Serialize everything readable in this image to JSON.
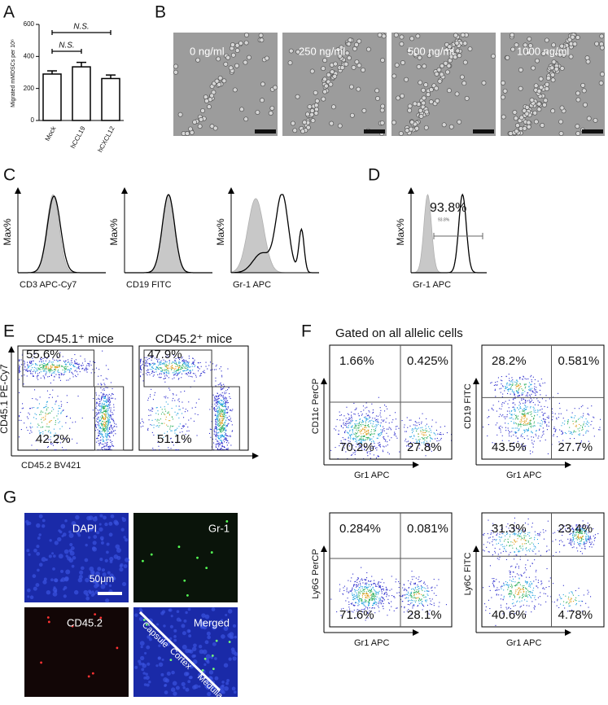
{
  "chart_data": {
    "type": "bar",
    "panel_label": "A",
    "ylabel": "Migrated mMDSCs per 10⁶",
    "categories": [
      "Mock",
      "hCCL19",
      "hCXCL12"
    ],
    "values": [
      290,
      335,
      262
    ],
    "errors": [
      20,
      28,
      22
    ],
    "color": "#ffffff",
    "ylim": [
      0,
      600
    ],
    "yticks": [
      0,
      200,
      400,
      600
    ],
    "annotations": [
      "N.S.",
      "N.S."
    ]
  },
  "panel_b": {
    "label": "B",
    "images": [
      "0 ng/ml",
      "250 ng/ml",
      "500 ng/ml",
      "1000 ng/ml"
    ]
  },
  "panel_c": {
    "label": "C",
    "ylabel": "Max%",
    "xlabels": [
      "CD3 APC-Cy7",
      "CD19 FITC",
      "Gr-1 APC"
    ]
  },
  "panel_d": {
    "label": "D",
    "ylabel": "Max%",
    "xlabel": "Gr-1 APC",
    "gate": "93.8%",
    "gate_small": "93.8%"
  },
  "panel_e": {
    "label": "E",
    "ylabel": "CD45.1 PE-Cy7",
    "xlabel": "CD45.2 BV421",
    "plots": [
      {
        "title": "CD45.1⁺ mice",
        "upper": "55.6%",
        "lower": "42.2%"
      },
      {
        "title": "CD45.2⁺ mice",
        "upper": "47.9%",
        "lower": "51.1%"
      }
    ]
  },
  "panel_f": {
    "label": "F",
    "title": "Gated on all allelic cells",
    "plots": [
      {
        "ylabel": "CD11c PerCP",
        "xlabel": "Gr1 APC",
        "quadrants": [
          "1.66%",
          "0.425%",
          "70.2%",
          "27.8%"
        ]
      },
      {
        "ylabel": "CD19 FITC",
        "xlabel": "Gr1 APC",
        "quadrants": [
          "28.2%",
          "0.581%",
          "43.5%",
          "27.7%"
        ]
      },
      {
        "ylabel": "Ly6G PerCP",
        "xlabel": "Gr1 APC",
        "quadrants": [
          "0.284%",
          "0.081%",
          "71.6%",
          "28.1%"
        ]
      },
      {
        "ylabel": "Ly6C FITC",
        "xlabel": "Gr1 APC",
        "quadrants": [
          "31.3%",
          "23.4%",
          "40.6%",
          "4.78%"
        ]
      }
    ]
  },
  "panel_g": {
    "label": "G",
    "images": [
      "DAPI",
      "Gr-1",
      "CD45.2",
      "Merged"
    ],
    "scale": "50μm",
    "zones": [
      "Capsule",
      "Cortex",
      "Medulla"
    ]
  }
}
